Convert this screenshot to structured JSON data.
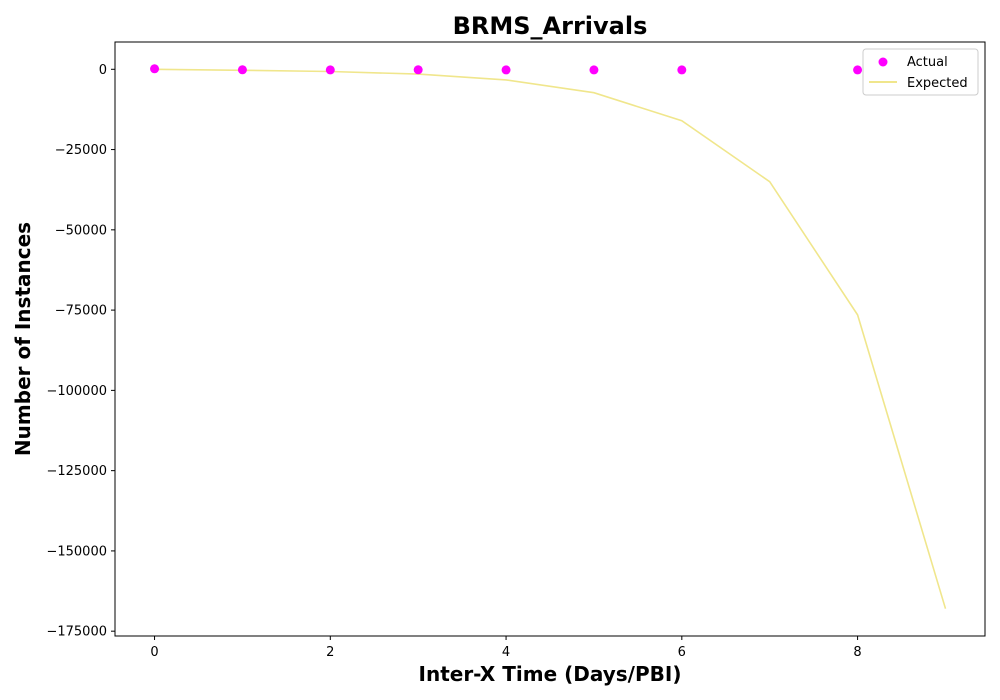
{
  "chart_data": {
    "type": "scatter",
    "title": "BRMS_Arrivals",
    "xlabel": "Inter-X Time (Days/PBI)",
    "ylabel": "Number of Instances",
    "xlim": [
      -0.45,
      9.45
    ],
    "ylim": [
      -176500,
      8500
    ],
    "xticks": [
      0,
      2,
      4,
      6,
      8
    ],
    "yticks": [
      0,
      -25000,
      -50000,
      -75000,
      -100000,
      -125000,
      -150000,
      -175000
    ],
    "grid": false,
    "legend_position": "top-right",
    "series": [
      {
        "name": "Actual",
        "kind": "scatter",
        "color": "#ff00ff",
        "x": [
          0,
          1,
          2,
          3,
          4,
          5,
          6,
          8
        ],
        "y": [
          150,
          -150,
          -200,
          -150,
          -200,
          -200,
          -200,
          -200
        ]
      },
      {
        "name": "Expected",
        "kind": "line",
        "color": "#f0e68c",
        "x": [
          0,
          1,
          2,
          3,
          4,
          5,
          6,
          7,
          8,
          9
        ],
        "y": [
          0,
          -300,
          -700,
          -1500,
          -3300,
          -7300,
          -16000,
          -35000,
          -76500,
          -168000
        ]
      }
    ]
  }
}
